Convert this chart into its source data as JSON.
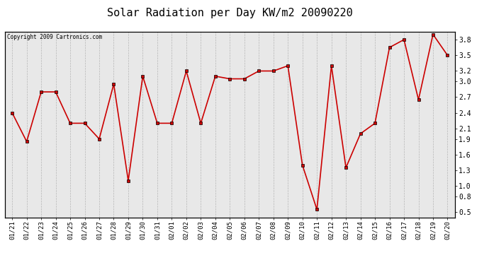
{
  "title": "Solar Radiation per Day KW/m2 20090220",
  "copyright_text": "Copyright 2009 Cartronics.com",
  "dates": [
    "01/21",
    "01/22",
    "01/23",
    "01/24",
    "01/25",
    "01/26",
    "01/27",
    "01/28",
    "01/29",
    "01/30",
    "01/31",
    "02/01",
    "02/02",
    "02/03",
    "02/04",
    "02/05",
    "02/06",
    "02/07",
    "02/08",
    "02/09",
    "02/10",
    "02/11",
    "02/12",
    "02/13",
    "02/14",
    "02/15",
    "02/16",
    "02/17",
    "02/18",
    "02/19",
    "02/20"
  ],
  "values": [
    2.4,
    1.85,
    2.8,
    2.8,
    2.2,
    2.2,
    1.9,
    2.95,
    1.1,
    3.1,
    2.2,
    2.2,
    3.2,
    2.2,
    3.1,
    3.05,
    3.05,
    3.2,
    3.2,
    3.3,
    1.4,
    0.55,
    3.3,
    1.35,
    2.0,
    2.2,
    3.65,
    3.8,
    2.65,
    3.9,
    3.5
  ],
  "line_color": "#cc0000",
  "marker": "s",
  "marker_size": 3,
  "ylim": [
    0.4,
    3.95
  ],
  "yticks": [
    0.5,
    0.8,
    1.0,
    1.3,
    1.6,
    1.9,
    2.1,
    2.4,
    2.7,
    3.0,
    3.2,
    3.5,
    3.8
  ],
  "bg_color": "#ffffff",
  "plot_bg_color": "#e8e8e8",
  "grid_color": "#aaaaaa",
  "title_fontsize": 11,
  "tick_fontsize": 6.5,
  "copyright_fontsize": 5.5
}
